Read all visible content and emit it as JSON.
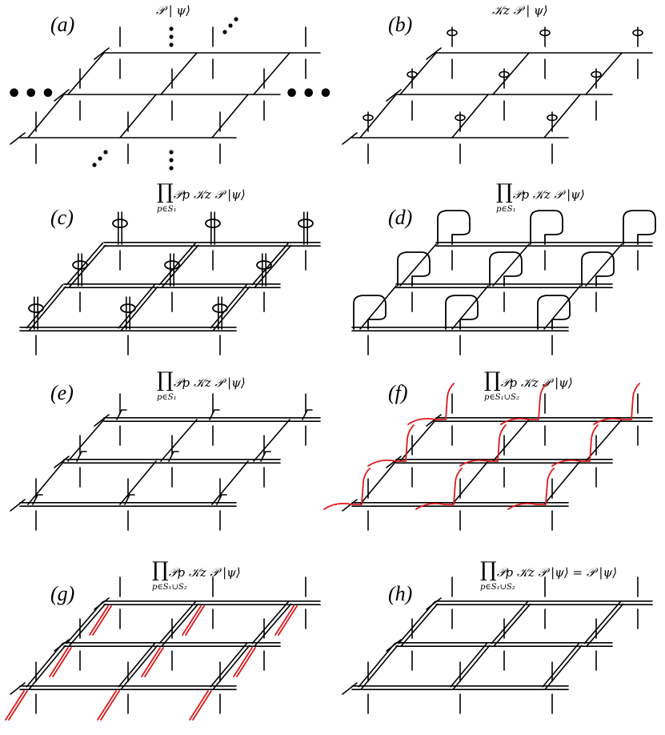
{
  "panels": [
    {
      "id": "a",
      "label": "(a)",
      "formula": "𝒫 | ψ⟩",
      "style": "single"
    },
    {
      "id": "b",
      "label": "(b)",
      "formula": "𝒦z 𝒫 | ψ⟩",
      "style": "loops"
    },
    {
      "id": "c",
      "label": "(c)",
      "formula_prefix": "∏",
      "formula_sub": "p∈S₁",
      "formula_body": "𝒫p 𝒦z 𝒫 |ψ⟩",
      "style": "double-loops"
    },
    {
      "id": "d",
      "label": "(d)",
      "formula_prefix": "∏",
      "formula_sub": "p∈S₁",
      "formula_body": "𝒫p 𝒦z 𝒫 |ψ⟩",
      "style": "double-big"
    },
    {
      "id": "e",
      "label": "(e)",
      "formula_prefix": "∏",
      "formula_sub": "p∈S₁",
      "formula_body": "𝒫p 𝒦z 𝒫 |ψ⟩",
      "style": "double"
    },
    {
      "id": "f",
      "label": "(f)",
      "formula_prefix": "∏",
      "formula_sub": "p∈S₁∪S₂",
      "formula_body": "𝒫p 𝒦z 𝒫 |ψ⟩",
      "style": "double-red"
    },
    {
      "id": "g",
      "label": "(g)",
      "formula_prefix": "∏",
      "formula_sub": "p∈S₁∪S₂",
      "formula_body": "𝒫p 𝒦z 𝒫 |ψ⟩",
      "style": "double-red-short"
    },
    {
      "id": "h",
      "label": "(h)",
      "formula_prefix": "∏",
      "formula_sub": "p∈S₁∪S₂",
      "formula_body": "𝒫p 𝒦z 𝒫 |ψ⟩ = 𝒫 |ψ⟩",
      "style": "double-full"
    }
  ],
  "colors": {
    "line": "#000000",
    "accent": "#e0191c",
    "background": "#ffffff"
  },
  "ellipsis": "•••",
  "ellipsis_vertical": "⋮"
}
